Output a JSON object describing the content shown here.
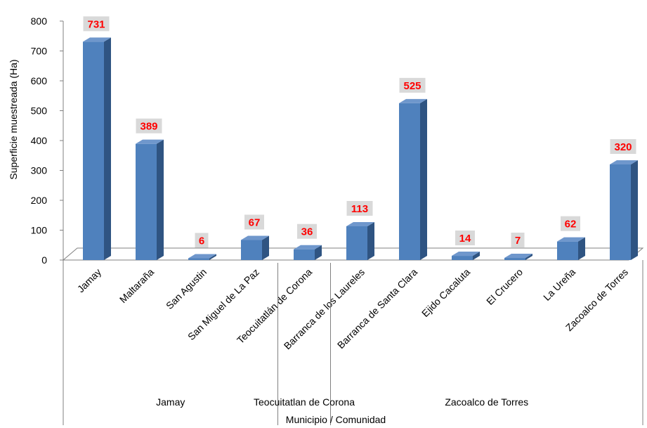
{
  "chart_data": {
    "type": "bar",
    "categories": [
      "Jamay",
      "Maltaraña",
      "San Agustin",
      "San Miguel de La Paz",
      "Teocuitatlán de Corona",
      "Barranca de los Laureles",
      "Barranca de Santa Clara",
      "Ejido Cacaluta",
      "El Crucero",
      "La Ureña",
      "Zacoalco de Torres"
    ],
    "values": [
      731,
      389,
      6,
      67,
      36,
      113,
      525,
      14,
      7,
      62,
      320
    ],
    "data_labels": [
      "731",
      "389",
      "6",
      "67",
      "36",
      "113",
      "525",
      "14",
      "7",
      "62",
      "320"
    ],
    "groups": [
      {
        "name": "Jamay",
        "start": 0,
        "end": 3
      },
      {
        "name": "Teocuitatlan de Corona",
        "start": 4,
        "end": 4
      },
      {
        "name": "Zacoalco de Torres",
        "start": 5,
        "end": 10
      }
    ],
    "ylabel": "Superficie muestreada (Ha)",
    "xlabel": "Municipio / Comunidad",
    "ylim": [
      0,
      800
    ],
    "yticks": [
      0,
      100,
      200,
      300,
      400,
      500,
      600,
      700,
      800
    ],
    "grid": false,
    "legend": "none",
    "colors": {
      "bar_front": "#4f81bd",
      "bar_side": "#2f5482",
      "bar_top": "#6f97cc",
      "label_text": "#ff0000",
      "label_box": "#d9d9d9"
    }
  }
}
